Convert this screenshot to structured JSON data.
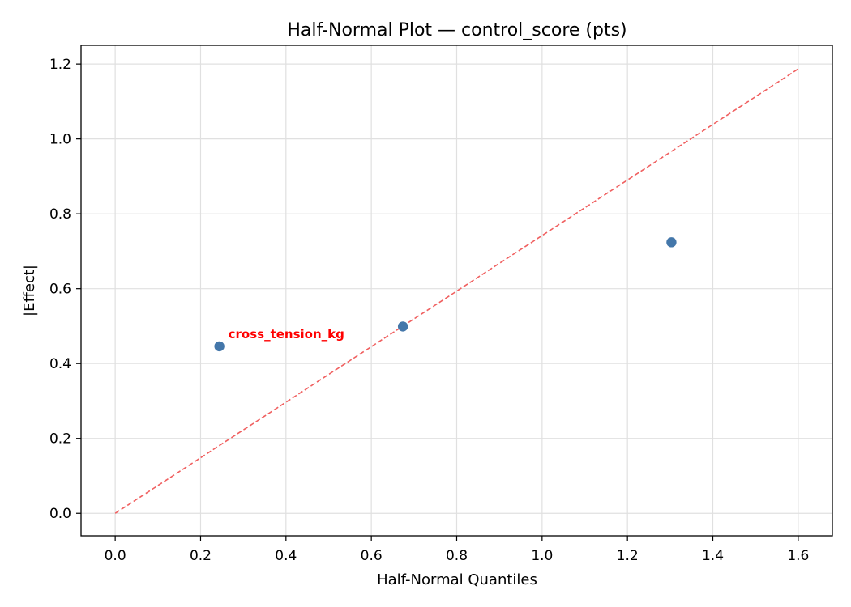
{
  "chart_data": {
    "type": "scatter",
    "title": "Half-Normal Plot — control_score (pts)",
    "xlabel": "Half-Normal Quantiles",
    "ylabel": "|Effect|",
    "xlim": [
      -0.08,
      1.68
    ],
    "ylim": [
      -0.06,
      1.25
    ],
    "xticks": [
      0.0,
      0.2,
      0.4,
      0.6,
      0.8,
      1.0,
      1.2,
      1.4,
      1.6
    ],
    "yticks": [
      0.0,
      0.2,
      0.4,
      0.6,
      0.8,
      1.0,
      1.2
    ],
    "grid": true,
    "points": [
      {
        "x": 0.244,
        "y": 0.446
      },
      {
        "x": 0.674,
        "y": 0.499
      },
      {
        "x": 1.303,
        "y": 0.724
      }
    ],
    "reference_line": {
      "x": [
        0.0,
        1.6
      ],
      "y": [
        0.0,
        1.187
      ],
      "style": "dashed"
    },
    "annotations": [
      {
        "text": "cross_tension_kg",
        "x": 0.244,
        "y": 0.446,
        "color": "#ff0000"
      }
    ],
    "colors": {
      "points": "#4477aa",
      "reference_line": "#f06060",
      "annotation": "#ff0000"
    }
  }
}
